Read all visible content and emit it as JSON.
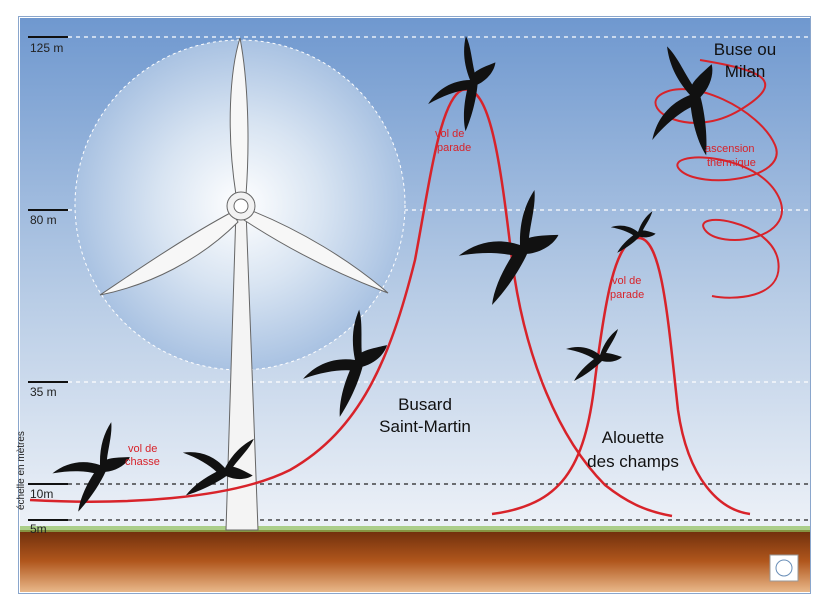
{
  "scale": {
    "axis_label": "échelle en mètres",
    "ticks": [
      "125 m",
      "80 m",
      "35 m",
      "10m",
      "5m"
    ]
  },
  "birds": {
    "busard": [
      "Busard",
      "Saint-Martin"
    ],
    "alouette": [
      "Alouette",
      "des champs"
    ],
    "buse": [
      "Buse ou",
      "Milan"
    ]
  },
  "flights": {
    "chasse": [
      "vol de",
      "chasse"
    ],
    "parade_busard": [
      "vol de",
      "parade"
    ],
    "parade_alouette": [
      "vol de",
      "parade"
    ],
    "thermique": [
      "ascension",
      "thermique"
    ]
  }
}
